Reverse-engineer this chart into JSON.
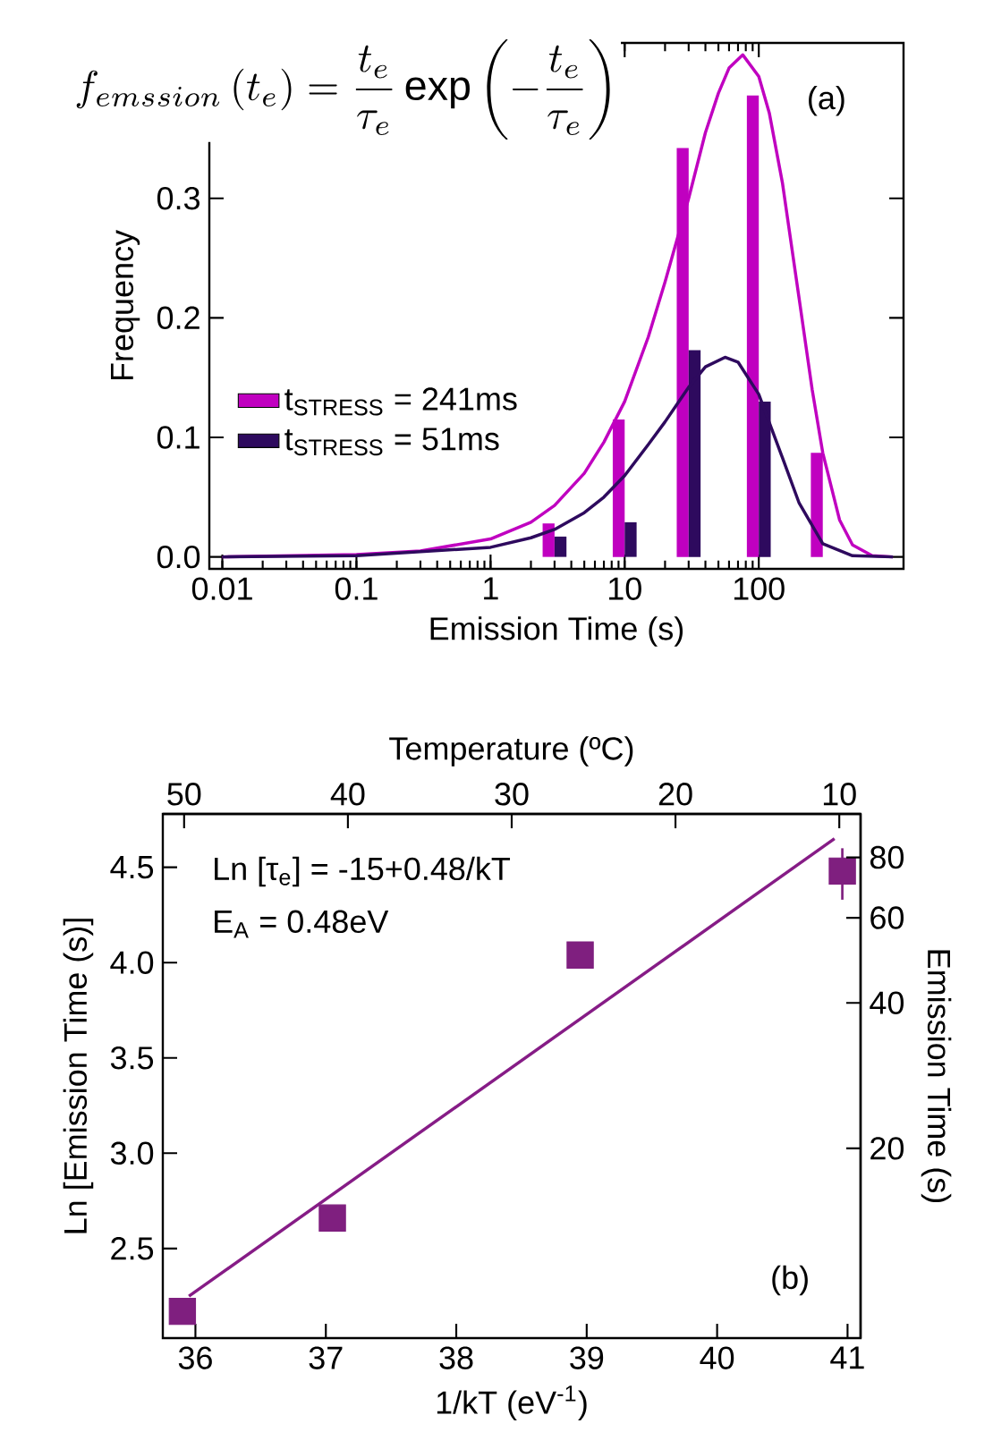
{
  "chart_data": [
    {
      "type": "bar",
      "title": "f_{emssion}\\left(t_e\\right)=\\frac{t_e}{\\tau_e}\\exp\\left(-\\frac{t_e}{\\tau_e}\\right)",
      "xlabel": "Emission Time (s)",
      "ylabel": "Frequency",
      "annotations": [
        "(a)"
      ],
      "log": "x",
      "xlim": [
        0.008,
        1200
      ],
      "ylim": [
        -0.01,
        0.43
      ],
      "xticks": [
        0.01,
        0.1,
        1,
        10,
        100
      ],
      "yticks": [
        {
          "value": 0,
          "label": "0.0"
        },
        0.1,
        0.2,
        0.3
      ],
      "legend": "bottom left",
      "series": [
        {
          "name": "t$_{STRESS}$ = 241ms",
          "type": "bar",
          "color": "#c000c0",
          "x": [
            3,
            10,
            30,
            100,
            300
          ],
          "values": [
            0.028,
            0.115,
            0.342,
            0.386,
            0.087
          ]
        },
        {
          "name": "t$_{STRESS}$ = 51ms",
          "type": "bar",
          "color": "#2e0a5e",
          "x": [
            3,
            10,
            30,
            100
          ],
          "values": [
            0.017,
            0.029,
            0.173,
            0.13
          ]
        },
        {
          "type": "line",
          "color": "#c000c0",
          "x": [
            0.01,
            0.1,
            0.3,
            1,
            2,
            3,
            5,
            7,
            10,
            15,
            20,
            30,
            40,
            50,
            60,
            76,
            100,
            120,
            150,
            200,
            250,
            300,
            400,
            500,
            700,
            1000
          ],
          "values": [
            0,
            0.002,
            0.005,
            0.015,
            0.029,
            0.043,
            0.07,
            0.096,
            0.13,
            0.184,
            0.23,
            0.3,
            0.355,
            0.388,
            0.409,
            0.42,
            0.402,
            0.371,
            0.313,
            0.216,
            0.14,
            0.087,
            0.031,
            0.01,
            0.001,
            0
          ]
        },
        {
          "type": "line",
          "color": "#2e0a5e",
          "x": [
            0.01,
            0.1,
            1,
            2,
            3,
            5,
            7,
            10,
            15,
            20,
            30,
            40,
            56,
            70,
            100,
            150,
            200,
            300,
            500,
            1000
          ],
          "values": [
            0,
            0.001,
            0.008,
            0.016,
            0.023,
            0.037,
            0.05,
            0.068,
            0.094,
            0.113,
            0.142,
            0.159,
            0.167,
            0.163,
            0.136,
            0.083,
            0.045,
            0.011,
            0.001,
            0
          ]
        }
      ]
    },
    {
      "type": "scatter",
      "xlabel": "1/kT (eV$^{-1}$)",
      "ylabel": "Ln [Emission Time (s)]",
      "x2label": "Temperature (ºC)",
      "y2label": "Emission Time (s)",
      "annotations": [
        "Ln [τ$_{e}$] = -15+0.48/kT",
        "E$_{A}$ = 0.48eV",
        "(b)"
      ],
      "log": "y2",
      "xlim": [
        35.75,
        41.1
      ],
      "ylim": [
        2.03,
        4.78
      ],
      "x2lim": [
        51.3,
        8.7
      ],
      "y2lim": [
        8.1,
        98.4
      ],
      "xticks": [
        36,
        37,
        38,
        39,
        40,
        41
      ],
      "yticks": [
        2.5,
        {
          "value": 3,
          "label": "3.0"
        },
        3.5,
        {
          "value": 4,
          "label": "4.0"
        },
        4.5
      ],
      "x2ticks": [
        50,
        40,
        30,
        20,
        10
      ],
      "y2ticks": [
        20,
        40,
        60,
        80
      ],
      "marker": "square",
      "series": [
        {
          "color": "#7f1f7f",
          "x": [
            35.9,
            37.05,
            38.95,
            40.96
          ],
          "values": [
            2.17,
            2.66,
            4.04,
            4.48
          ],
          "errors": [
            null,
            null,
            null,
            [
              4.33,
              4.6
            ]
          ]
        },
        {
          "type": "line",
          "color": "#861c86",
          "marker": "none",
          "x": [
            35.95,
            40.9
          ],
          "values": [
            2.25,
            4.65
          ]
        }
      ]
    }
  ]
}
